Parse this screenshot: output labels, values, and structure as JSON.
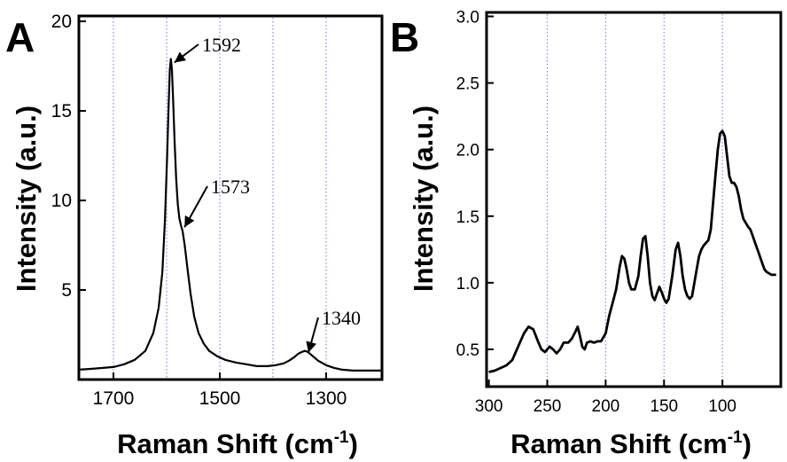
{
  "chart_data": [
    {
      "type": "line",
      "panel_label": "A",
      "xlabel": "Raman Shift (cm",
      "xlabel_sup": "-1",
      "xlabel_close": ")",
      "ylabel": "Intensity (a.u.)",
      "xlim": [
        1195,
        1765
      ],
      "x_reversed": true,
      "ylim": [
        0,
        20.3
      ],
      "xticks": [
        1700,
        1500,
        1300
      ],
      "yticks": [
        5,
        10,
        15,
        20
      ],
      "grid_x": [
        1700,
        1600,
        1500,
        1400,
        1300
      ],
      "grid": "vertical-dotted",
      "color": "#000000",
      "annotations": [
        {
          "text": "1592",
          "x": 1592,
          "y": 17.8
        },
        {
          "text": "1573",
          "x": 1573,
          "y": 8.6
        },
        {
          "text": "1340",
          "x": 1340,
          "y": 1.6
        }
      ],
      "series": [
        {
          "x": [
            1765,
            1740,
            1720,
            1700,
            1680,
            1660,
            1640,
            1625,
            1615,
            1608,
            1603,
            1599,
            1596,
            1594,
            1592,
            1590,
            1588,
            1585,
            1582,
            1579,
            1576,
            1573,
            1570,
            1566,
            1560,
            1555,
            1548,
            1540,
            1530,
            1520,
            1505,
            1490,
            1470,
            1450,
            1430,
            1410,
            1395,
            1380,
            1370,
            1360,
            1352,
            1345,
            1340,
            1335,
            1325,
            1315,
            1300,
            1285,
            1270,
            1250,
            1230,
            1210,
            1195
          ],
          "y": [
            0.55,
            0.6,
            0.65,
            0.7,
            0.85,
            1.1,
            1.6,
            2.6,
            4.0,
            6.0,
            9.0,
            12.5,
            15.5,
            17.3,
            17.9,
            17.3,
            15.8,
            13.3,
            11.2,
            9.8,
            9.0,
            8.6,
            8.3,
            7.5,
            6.0,
            4.8,
            3.5,
            2.6,
            2.0,
            1.6,
            1.3,
            1.1,
            0.95,
            0.85,
            0.75,
            0.75,
            0.8,
            0.9,
            1.05,
            1.25,
            1.45,
            1.55,
            1.6,
            1.55,
            1.3,
            1.05,
            0.8,
            0.65,
            0.55,
            0.5,
            0.5,
            0.5,
            0.5
          ]
        }
      ]
    },
    {
      "type": "line",
      "panel_label": "B",
      "xlabel": "Raman Shift (cm",
      "xlabel_sup": "-1",
      "xlabel_close": ")",
      "ylabel": "Intensity (a.u.)",
      "xlim": [
        50,
        302
      ],
      "x_reversed": true,
      "ylim": [
        0.22,
        3.03
      ],
      "xticks": [
        300,
        250,
        200,
        150,
        100
      ],
      "yticks": [
        "0.5",
        "1.0",
        "1.5",
        "2.0",
        "2.5",
        "3.0"
      ],
      "grid_x": [
        250,
        200,
        150,
        100
      ],
      "grid": "vertical-dotted",
      "color": "#000000",
      "series": [
        {
          "x": [
            300,
            295,
            290,
            285,
            280,
            275,
            270,
            266,
            262,
            258,
            255,
            252,
            248,
            245,
            242,
            239,
            236,
            232,
            229,
            226,
            224,
            222,
            220,
            218,
            216,
            213,
            210,
            207,
            204,
            200,
            197,
            194,
            191,
            188,
            186,
            184,
            182,
            180,
            178,
            175,
            172,
            170,
            168,
            166,
            164,
            162,
            160,
            158,
            156,
            154,
            152,
            150,
            148,
            146,
            143,
            140,
            138,
            136,
            134,
            132,
            130,
            128,
            126,
            124,
            122,
            120,
            118,
            116,
            114,
            112,
            110,
            108,
            106,
            104,
            102,
            100,
            98,
            96,
            94,
            92,
            90,
            88,
            86,
            84,
            82,
            80,
            78,
            76,
            74,
            72,
            70,
            68,
            66,
            64,
            62,
            60,
            58,
            56,
            54
          ],
          "y": [
            0.33,
            0.34,
            0.36,
            0.38,
            0.42,
            0.52,
            0.62,
            0.67,
            0.65,
            0.56,
            0.5,
            0.48,
            0.52,
            0.5,
            0.47,
            0.5,
            0.55,
            0.55,
            0.58,
            0.63,
            0.67,
            0.6,
            0.52,
            0.5,
            0.55,
            0.56,
            0.55,
            0.56,
            0.56,
            0.62,
            0.75,
            0.85,
            0.95,
            1.12,
            1.2,
            1.18,
            1.1,
            1.0,
            0.95,
            0.95,
            1.05,
            1.2,
            1.33,
            1.35,
            1.2,
            1.0,
            0.9,
            0.87,
            0.92,
            0.97,
            0.93,
            0.88,
            0.85,
            0.88,
            1.05,
            1.25,
            1.3,
            1.2,
            1.05,
            0.95,
            0.9,
            0.88,
            0.9,
            1.0,
            1.1,
            1.2,
            1.25,
            1.28,
            1.3,
            1.32,
            1.4,
            1.6,
            1.8,
            2.0,
            2.12,
            2.14,
            2.1,
            1.95,
            1.8,
            1.75,
            1.75,
            1.72,
            1.65,
            1.55,
            1.48,
            1.45,
            1.42,
            1.4,
            1.35,
            1.3,
            1.25,
            1.2,
            1.15,
            1.1,
            1.08,
            1.07,
            1.06,
            1.06,
            1.06
          ]
        }
      ]
    }
  ]
}
